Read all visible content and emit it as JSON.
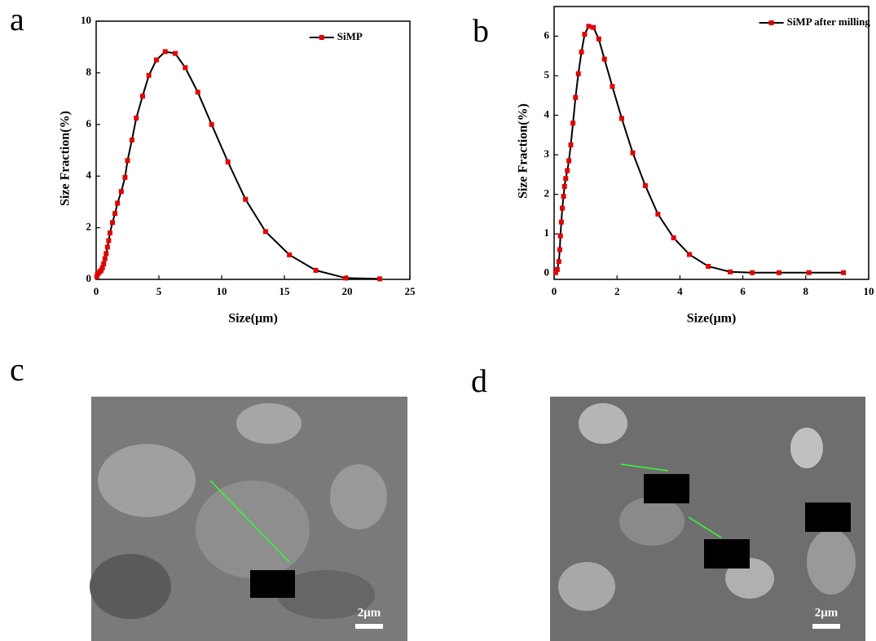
{
  "panel_labels": [
    "a",
    "b",
    "c",
    "d"
  ],
  "chart_data": [
    {
      "type": "line",
      "xlabel": "Size(μm)",
      "ylabel": "Size Fraction(%)",
      "xlim": [
        0,
        25
      ],
      "ylim": [
        0,
        10
      ],
      "xticks": [
        0,
        5,
        10,
        15,
        20,
        25
      ],
      "yticks": [
        0,
        2,
        4,
        6,
        8,
        10
      ],
      "legend": "upper right",
      "series": [
        {
          "name": "SiMP",
          "color": "#e00000",
          "x": [
            0.05,
            0.1,
            0.2,
            0.3,
            0.4,
            0.5,
            0.6,
            0.7,
            0.8,
            0.9,
            1.0,
            1.1,
            1.3,
            1.5,
            1.7,
            2.0,
            2.3,
            2.5,
            2.85,
            3.2,
            3.7,
            4.2,
            4.8,
            5.5,
            6.3,
            7.1,
            8.1,
            9.2,
            10.5,
            11.9,
            13.5,
            15.4,
            17.5,
            19.9,
            22.6
          ],
          "values": [
            0.1,
            0.2,
            0.25,
            0.3,
            0.35,
            0.45,
            0.6,
            0.8,
            1.0,
            1.25,
            1.5,
            1.8,
            2.2,
            2.55,
            2.95,
            3.4,
            3.95,
            4.6,
            5.4,
            6.25,
            7.1,
            7.9,
            8.5,
            8.82,
            8.75,
            8.2,
            7.25,
            6.0,
            4.55,
            3.1,
            1.85,
            0.95,
            0.35,
            0.05,
            0.02
          ]
        }
      ]
    },
    {
      "type": "line",
      "xlabel": "Size(μm)",
      "ylabel": "Size Fraction(%)",
      "xlim": [
        0,
        10
      ],
      "ylim": [
        -0.15,
        6.75
      ],
      "xticks": [
        0,
        2,
        4,
        6,
        8,
        10
      ],
      "yticks": [
        0,
        1,
        2,
        3,
        4,
        5,
        6
      ],
      "legend": "upper right",
      "series": [
        {
          "name": "SiMP after milling",
          "color": "#e00000",
          "x": [
            0.05,
            0.1,
            0.15,
            0.18,
            0.2,
            0.23,
            0.26,
            0.3,
            0.33,
            0.37,
            0.42,
            0.47,
            0.53,
            0.6,
            0.68,
            0.77,
            0.87,
            0.97,
            1.1,
            1.25,
            1.42,
            1.6,
            1.85,
            2.15,
            2.5,
            2.9,
            3.3,
            3.8,
            4.3,
            4.9,
            5.6,
            6.3,
            7.15,
            8.1,
            9.2
          ],
          "values": [
            0.02,
            0.1,
            0.3,
            0.6,
            0.95,
            1.3,
            1.65,
            1.95,
            2.2,
            2.4,
            2.6,
            2.85,
            3.25,
            3.8,
            4.45,
            5.05,
            5.6,
            6.05,
            6.25,
            6.22,
            5.93,
            5.42,
            4.73,
            3.92,
            3.05,
            2.22,
            1.5,
            0.9,
            0.48,
            0.18,
            0.04,
            0.02,
            0.02,
            0.02,
            0.02
          ]
        }
      ]
    }
  ],
  "images": [
    {
      "scale_bar": "2μm"
    },
    {
      "scale_bar": "2μm"
    }
  ]
}
